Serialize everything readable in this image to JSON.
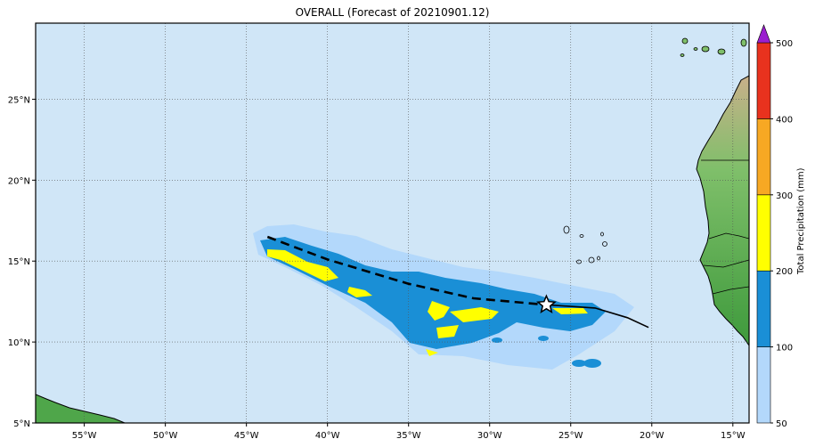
{
  "title": "OVERALL (Forecast of 20210901.12)",
  "map": {
    "lon_range": [
      -58,
      -14
    ],
    "lat_range": [
      5,
      29.7
    ],
    "lon_ticks": [
      "55°W",
      "50°W",
      "45°W",
      "40°W",
      "35°W",
      "30°W",
      "25°W",
      "20°W",
      "15°W"
    ],
    "lat_ticks": [
      "5°N",
      "10°N",
      "15°N",
      "20°N",
      "25°N"
    ],
    "ocean_color": "#d0e6f7",
    "land_color": "#6fb35a"
  },
  "track": {
    "forecast_past": [
      [
        -43.7,
        16.5
      ],
      [
        -40,
        15.1
      ],
      [
        -35,
        13.6
      ],
      [
        -31,
        12.7
      ],
      [
        -26.5,
        12.3
      ]
    ],
    "forecast_future": [
      [
        -26.5,
        12.3
      ],
      [
        -23.5,
        12.1
      ],
      [
        -21.5,
        11.5
      ],
      [
        -20.2,
        10.9
      ]
    ],
    "current_position": [
      -26.5,
      12.3
    ],
    "current_marker": "star-icon"
  },
  "colorbar": {
    "label": "Total Precipitation (mm)",
    "ticks": [
      "50",
      "100",
      "200",
      "300",
      "400",
      "500"
    ],
    "bins": [
      {
        "from": 50,
        "to": 100,
        "color": "#b3d8fb"
      },
      {
        "from": 100,
        "to": 200,
        "color": "#1a8fd6"
      },
      {
        "from": 200,
        "to": 300,
        "color": "#ffff00"
      },
      {
        "from": 300,
        "to": 400,
        "color": "#f7a823"
      },
      {
        "from": 400,
        "to": 500,
        "color": "#e8321e"
      }
    ],
    "over_color": "#9b1fcf"
  }
}
